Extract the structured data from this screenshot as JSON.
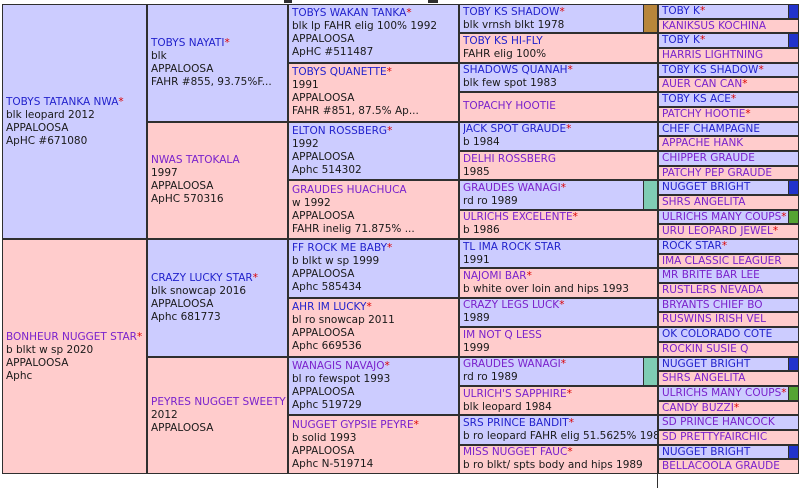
{
  "palette": {
    "cell_blue": "#ccccff",
    "cell_pink": "#ffcccc",
    "border": "#2f2f2f",
    "link_blue": "#2222cc",
    "link_visited": "#7a22cc",
    "detail_text": "#1a1a1a",
    "asterisk_red": "#dd0000",
    "hl_gold": "#b8863b",
    "hl_teal": "#7fccb4",
    "hl_navy": "#2233cc",
    "hl_green": "#55a433"
  },
  "pedigree": {
    "generations": [
      {
        "cells": [
          {
            "name": "TOBYS TATANKA NWA",
            "star": "*",
            "visited": false,
            "bg": "blue",
            "details": [
              "blk leopard 2012",
              "APPALOOSA",
              "ApHC #671080"
            ],
            "marker": null
          },
          {
            "name": "BONHEUR NUGGET STAR",
            "star": "*",
            "visited": true,
            "bg": "pink",
            "details": [
              "b blkt w sp 2020",
              "APPALOOSA",
              "Aphc"
            ],
            "marker": null
          }
        ]
      },
      {
        "cells": [
          {
            "name": "TOBYS NAYATI",
            "star": "*",
            "visited": false,
            "bg": "blue",
            "details": [
              "blk",
              "APPALOOSA",
              "FAHR #855, 93.75%F..."
            ],
            "marker": null
          },
          {
            "name": "NWAS TATOKALA",
            "star": "",
            "visited": true,
            "bg": "pink",
            "details": [
              "1997",
              "APPALOOSA",
              "ApHC 570316"
            ],
            "marker": null
          },
          {
            "name": "CRAZY LUCKY STAR",
            "star": "*",
            "visited": false,
            "bg": "blue",
            "details": [
              "blk snowcap 2016",
              "APPALOOSA",
              "Aphc 681773"
            ],
            "marker": null
          },
          {
            "name": "PEYRES NUGGET SWEETY",
            "star": "",
            "visited": true,
            "bg": "pink",
            "details": [
              "2012",
              "APPALOOSA"
            ],
            "marker": null
          }
        ]
      },
      {
        "cells": [
          {
            "name": "TOBYS WAKAN TANKA",
            "star": "*",
            "visited": false,
            "bg": "blue",
            "details": [
              "blk lp FAHR elig 100% 1992",
              "APPALOOSA",
              "ApHC #511487"
            ],
            "marker": null
          },
          {
            "name": "TOBYS QUANETTE",
            "star": "*",
            "visited": false,
            "bg": "pink",
            "details": [
              "1991",
              "APPALOOSA",
              "FAHR #851, 87.5% Ap..."
            ],
            "marker": null
          },
          {
            "name": "ELTON ROSSBERG",
            "star": "*",
            "visited": false,
            "bg": "blue",
            "details": [
              "1992",
              "APPALOOSA",
              "Aphc 514302"
            ],
            "marker": null
          },
          {
            "name": "GRAUDES HUACHUCA",
            "star": "",
            "visited": true,
            "bg": "pink",
            "details": [
              "w 1992",
              "APPALOOSA",
              "FAHR inelig 71.875% ..."
            ],
            "marker": null
          },
          {
            "name": "FF ROCK ME BABY",
            "star": "*",
            "visited": false,
            "bg": "blue",
            "details": [
              "b blkt w sp 1999",
              "APPALOOSA",
              "Aphc 585434"
            ],
            "marker": null
          },
          {
            "name": "AHR IM LUCKY",
            "star": "*",
            "visited": false,
            "bg": "pink",
            "details": [
              "bl ro snowcap 2011",
              "APPALOOSA",
              "Aphc 669536"
            ],
            "marker": null
          },
          {
            "name": "WANAGIS NAVAJO",
            "star": "*",
            "visited": true,
            "bg": "blue",
            "details": [
              "bl ro fewspot 1993",
              "APPALOOSA",
              "Aphc 519729"
            ],
            "marker": null
          },
          {
            "name": "NUGGET GYPSIE PEYRE",
            "star": "*",
            "visited": true,
            "bg": "pink",
            "details": [
              "b solid 1993",
              "APPALOOSA",
              "Aphc N-519714"
            ],
            "marker": null
          }
        ]
      },
      {
        "cells": [
          {
            "name": "TOBY KS SHADOW",
            "star": "*",
            "visited": false,
            "bg": "blue",
            "details": [
              "blk vrnsh blkt 1978"
            ],
            "marker": "gold"
          },
          {
            "name": "TOBY KS HI-FLY",
            "star": "",
            "visited": false,
            "bg": "pink",
            "details": [
              "FAHR elig 100%"
            ],
            "marker": null
          },
          {
            "name": "SHADOWS QUANAH",
            "star": "*",
            "visited": false,
            "bg": "blue",
            "details": [
              "blk few spot 1983"
            ],
            "marker": null
          },
          {
            "name": "TOPACHY HOOTIE",
            "star": "",
            "visited": true,
            "bg": "pink",
            "details": [],
            "marker": null
          },
          {
            "name": "JACK SPOT GRAUDE",
            "star": "*",
            "visited": false,
            "bg": "blue",
            "details": [
              "b 1984"
            ],
            "marker": null
          },
          {
            "name": "DELHI ROSSBERG",
            "star": "",
            "visited": true,
            "bg": "pink",
            "details": [
              "1985"
            ],
            "marker": null
          },
          {
            "name": "GRAUDES WANAGI",
            "star": "*",
            "visited": true,
            "bg": "blue",
            "details": [
              "rd ro 1989"
            ],
            "marker": "teal"
          },
          {
            "name": "ULRICHS EXCELENTE",
            "star": "*",
            "visited": true,
            "bg": "pink",
            "details": [
              "b 1986"
            ],
            "marker": null
          },
          {
            "name": "TL IMA ROCK STAR",
            "star": "",
            "visited": false,
            "bg": "blue",
            "details": [
              "1991"
            ],
            "marker": null
          },
          {
            "name": "NAJOMI BAR",
            "star": "*",
            "visited": true,
            "bg": "pink",
            "details": [
              "b white over loin and hips 1993"
            ],
            "marker": null
          },
          {
            "name": "CRAZY LEGS LUCK",
            "star": "*",
            "visited": true,
            "bg": "blue",
            "details": [
              "1989"
            ],
            "marker": null
          },
          {
            "name": "IM NOT Q LESS",
            "star": "",
            "visited": true,
            "bg": "pink",
            "details": [
              "1999"
            ],
            "marker": null
          },
          {
            "name": "GRAUDES WANAGI",
            "star": "*",
            "visited": true,
            "bg": "blue",
            "details": [
              "rd ro 1989"
            ],
            "marker": "teal"
          },
          {
            "name": "ULRICH'S SAPPHIRE",
            "star": "*",
            "visited": true,
            "bg": "pink",
            "details": [
              "blk leopard 1984"
            ],
            "marker": null
          },
          {
            "name": "SRS PRINCE BANDIT",
            "star": "*",
            "visited": false,
            "bg": "blue",
            "details": [
              "b ro leopard FAHR elig 51.5625% 1989"
            ],
            "marker": null
          },
          {
            "name": "MISS NUGGET FAUC",
            "star": "*",
            "visited": true,
            "bg": "pink",
            "details": [
              "b ro blkt/ spts body and hips 1989"
            ],
            "marker": null
          }
        ]
      },
      {
        "cells": [
          {
            "name": "TOBY K",
            "star": "*",
            "visited": false,
            "bg": "blue",
            "details": [],
            "marker": "navy"
          },
          {
            "name": "KANIKSUS KOCHINA",
            "star": "",
            "visited": true,
            "bg": "pink",
            "details": [],
            "marker": null
          },
          {
            "name": "TOBY K",
            "star": "*",
            "visited": false,
            "bg": "blue",
            "details": [],
            "marker": "navy"
          },
          {
            "name": "HARRIS LIGHTNING",
            "star": "",
            "visited": true,
            "bg": "pink",
            "details": [],
            "marker": null
          },
          {
            "name": "TOBY KS SHADOW",
            "star": "*",
            "visited": false,
            "bg": "blue",
            "details": [],
            "marker": null
          },
          {
            "name": "AUER CAN CAN",
            "star": "*",
            "visited": true,
            "bg": "pink",
            "details": [],
            "marker": null
          },
          {
            "name": "TOBY KS ACE",
            "star": "*",
            "visited": false,
            "bg": "blue",
            "details": [],
            "marker": null
          },
          {
            "name": "PATCHY HOOTIE",
            "star": "*",
            "visited": true,
            "bg": "pink",
            "details": [],
            "marker": null
          },
          {
            "name": "CHEF CHAMPAGNE",
            "star": "",
            "visited": false,
            "bg": "blue",
            "details": [],
            "marker": null
          },
          {
            "name": "APPACHE HANK",
            "star": "",
            "visited": true,
            "bg": "pink",
            "details": [],
            "marker": null
          },
          {
            "name": "CHIPPER GRAUDE",
            "star": "",
            "visited": true,
            "bg": "blue",
            "details": [],
            "marker": null
          },
          {
            "name": "PATCHY PEP GRAUDE",
            "star": "",
            "visited": true,
            "bg": "pink",
            "details": [],
            "marker": null
          },
          {
            "name": "NUGGET BRIGHT",
            "star": "",
            "visited": false,
            "bg": "blue",
            "details": [],
            "marker": "navy"
          },
          {
            "name": "SHRS ANGELITA",
            "star": "",
            "visited": true,
            "bg": "pink",
            "details": [],
            "marker": null
          },
          {
            "name": "ULRICHS MANY COUPS",
            "star": "*",
            "visited": true,
            "bg": "blue",
            "details": [],
            "marker": "green"
          },
          {
            "name": "URU LEOPARD JEWEL",
            "star": "*",
            "visited": true,
            "bg": "pink",
            "details": [],
            "marker": null
          },
          {
            "name": "ROCK STAR",
            "star": "*",
            "visited": false,
            "bg": "blue",
            "details": [],
            "marker": null
          },
          {
            "name": "IMA CLASSIC LEAGUER",
            "star": "",
            "visited": true,
            "bg": "pink",
            "details": [],
            "marker": null
          },
          {
            "name": "MR BRITE BAR LEE",
            "star": "",
            "visited": true,
            "bg": "blue",
            "details": [],
            "marker": null
          },
          {
            "name": "RUSTLERS NEVADA",
            "star": "",
            "visited": true,
            "bg": "pink",
            "details": [],
            "marker": null
          },
          {
            "name": "BRYANTS CHIEF BO",
            "star": "",
            "visited": true,
            "bg": "blue",
            "details": [],
            "marker": null
          },
          {
            "name": "RUSWINS IRISH VEL",
            "star": "",
            "visited": true,
            "bg": "pink",
            "details": [],
            "marker": null
          },
          {
            "name": "OK COLORADO COTE",
            "star": "",
            "visited": false,
            "bg": "blue",
            "details": [],
            "marker": null
          },
          {
            "name": "ROCKIN SUSIE Q",
            "star": "",
            "visited": true,
            "bg": "pink",
            "details": [],
            "marker": null
          },
          {
            "name": "NUGGET BRIGHT",
            "star": "",
            "visited": false,
            "bg": "blue",
            "details": [],
            "marker": "navy"
          },
          {
            "name": "SHRS ANGELITA",
            "star": "",
            "visited": true,
            "bg": "pink",
            "details": [],
            "marker": null
          },
          {
            "name": "ULRICHS MANY COUPS",
            "star": "*",
            "visited": true,
            "bg": "blue",
            "details": [],
            "marker": "green"
          },
          {
            "name": "CANDY BUZZI",
            "star": "*",
            "visited": true,
            "bg": "pink",
            "details": [],
            "marker": null
          },
          {
            "name": "SD PRINCE HANCOCK",
            "star": "",
            "visited": true,
            "bg": "blue",
            "details": [],
            "marker": null
          },
          {
            "name": "SD PRETTYFAIRCHIC",
            "star": "",
            "visited": true,
            "bg": "pink",
            "details": [],
            "marker": null
          },
          {
            "name": "NUGGET BRIGHT",
            "star": "",
            "visited": false,
            "bg": "blue",
            "details": [],
            "marker": "navy"
          },
          {
            "name": "BELLACOOLA GRAUDE",
            "star": "",
            "visited": true,
            "bg": "pink",
            "details": [],
            "marker": null
          }
        ]
      }
    ]
  }
}
